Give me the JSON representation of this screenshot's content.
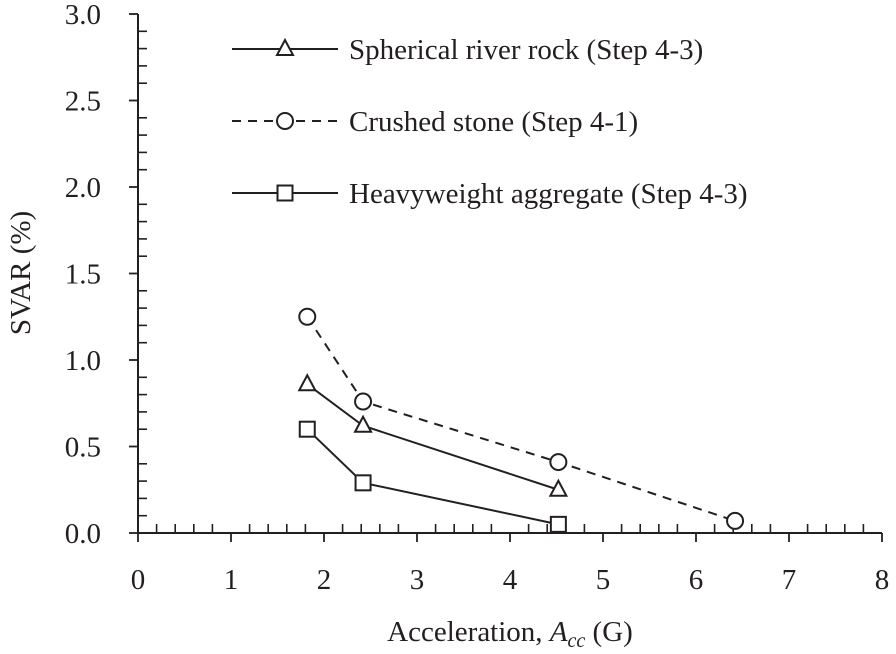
{
  "chart_data": {
    "type": "line",
    "xlabel": "Acceleration, ",
    "xlabel_var": "A",
    "xlabel_sub": "cc",
    "xlabel_unit": " (G)",
    "ylabel": "SVAR (%)",
    "xlim": [
      0,
      8
    ],
    "ylim": [
      0,
      3.0
    ],
    "x_ticks": [
      "0",
      "1",
      "2",
      "3",
      "4",
      "5",
      "6",
      "7",
      "8"
    ],
    "y_ticks": [
      "0.0",
      "0.5",
      "1.0",
      "1.5",
      "2.0",
      "2.5",
      "3.0"
    ],
    "x_minor_step": 0.2,
    "y_minor_step": 0.1,
    "grid": false,
    "legend_position": "top-right",
    "series": [
      {
        "name": "Spherical river rock (Step 4-3)",
        "marker": "triangle",
        "dash": false,
        "color": "#231f20",
        "x": [
          1.82,
          2.42,
          4.52
        ],
        "y": [
          0.86,
          0.62,
          0.25
        ]
      },
      {
        "name": "Crushed stone (Step 4-1)",
        "marker": "circle",
        "dash": true,
        "color": "#231f20",
        "x": [
          1.82,
          2.42,
          4.52,
          6.42
        ],
        "y": [
          1.25,
          0.76,
          0.41,
          0.07
        ]
      },
      {
        "name": "Heavyweight aggregate (Step 4-3)",
        "marker": "square",
        "dash": false,
        "color": "#231f20",
        "x": [
          1.82,
          2.42,
          4.52
        ],
        "y": [
          0.6,
          0.29,
          0.05
        ]
      }
    ]
  }
}
